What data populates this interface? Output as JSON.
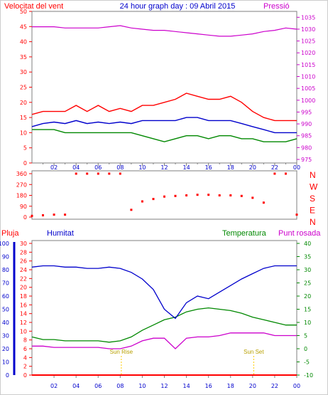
{
  "chart_data": [
    {
      "type": "line",
      "title": "24 hour graph day : 09 Abril 2015",
      "left_label": "Velocitat del vent",
      "right_label": "Pressió",
      "x_ticks": [
        "02",
        "04",
        "06",
        "08",
        "10",
        "12",
        "14",
        "16",
        "18",
        "20",
        "22",
        "00"
      ],
      "y_left_ticks": [
        "0",
        "5",
        "10",
        "15",
        "20",
        "25",
        "30",
        "35",
        "40",
        "45",
        "50"
      ],
      "y_right_ticks": [
        "975",
        "980",
        "985",
        "990",
        "995",
        "1000",
        "1005",
        "1010",
        "1015",
        "1020",
        "1025",
        "1030",
        "1035"
      ],
      "ylim_left": [
        0,
        50
      ],
      "ylim_right": [
        973.5,
        1037.5
      ],
      "grid": false,
      "colors": {
        "gust": "#ff0000",
        "average": "#0000cc",
        "speed": "#008800",
        "pressure": "#cc00cc"
      },
      "series": [
        {
          "key": "pressure",
          "axis": "right",
          "x": [
            0,
            1,
            2,
            3,
            4,
            5,
            6,
            7,
            8,
            9,
            10,
            11,
            12,
            13,
            14,
            15,
            16,
            17,
            18,
            19,
            20,
            21,
            22,
            23,
            24
          ],
          "y": [
            1031,
            1031,
            1031,
            1030.5,
            1030.5,
            1030.5,
            1030.5,
            1031,
            1031.5,
            1030.5,
            1030,
            1029.5,
            1029.5,
            1029,
            1028.5,
            1028,
            1027.5,
            1027,
            1027,
            1027.5,
            1028,
            1029,
            1029.5,
            1030.5,
            1030
          ]
        },
        {
          "key": "gust",
          "axis": "left",
          "x": [
            0,
            1,
            2,
            3,
            4,
            5,
            6,
            7,
            8,
            9,
            10,
            11,
            12,
            13,
            14,
            15,
            16,
            17,
            18,
            19,
            20,
            21,
            22,
            23,
            24
          ],
          "y": [
            16,
            17,
            17,
            17,
            19,
            17,
            19,
            17,
            18,
            17,
            19,
            19,
            20,
            21,
            23,
            22,
            21,
            21,
            22,
            20,
            17,
            15,
            14,
            14,
            14
          ]
        },
        {
          "key": "average",
          "axis": "left",
          "x": [
            0,
            1,
            2,
            3,
            4,
            5,
            6,
            7,
            8,
            9,
            10,
            11,
            12,
            13,
            14,
            15,
            16,
            17,
            18,
            19,
            20,
            21,
            22,
            23,
            24
          ],
          "y": [
            12,
            13,
            13.5,
            13,
            14,
            13,
            13.5,
            13,
            13.5,
            13,
            14,
            14,
            14,
            14,
            15,
            15,
            14,
            14,
            14,
            13,
            12,
            11,
            10,
            10,
            10
          ]
        },
        {
          "key": "speed",
          "axis": "left",
          "x": [
            0,
            1,
            2,
            3,
            4,
            5,
            6,
            7,
            8,
            9,
            10,
            11,
            12,
            13,
            14,
            15,
            16,
            17,
            18,
            19,
            20,
            21,
            22,
            23,
            24
          ],
          "y": [
            11,
            11,
            11,
            10,
            10,
            10,
            10,
            10,
            10,
            10,
            9,
            8,
            7,
            8,
            9,
            9,
            8,
            9,
            9,
            8,
            8,
            7,
            7,
            7,
            8
          ]
        }
      ]
    },
    {
      "type": "scatter",
      "y_ticks": [
        "360",
        "270",
        "180",
        "90",
        "0"
      ],
      "direction_letters": [
        "N",
        "W",
        "S",
        "E",
        "N"
      ],
      "ylim": [
        0,
        360
      ],
      "colors": {
        "points": "#ff0000"
      },
      "series": [
        {
          "key": "direction",
          "x": [
            0,
            1,
            2,
            3,
            4,
            5,
            6,
            7,
            8,
            9,
            10,
            11,
            12,
            13,
            14,
            15,
            16,
            17,
            18,
            19,
            20,
            21,
            22,
            23,
            24
          ],
          "y": [
            10,
            15,
            20,
            20,
            360,
            360,
            360,
            360,
            360,
            60,
            130,
            150,
            170,
            175,
            180,
            185,
            185,
            180,
            180,
            175,
            160,
            120,
            360,
            360,
            20
          ]
        }
      ]
    },
    {
      "type": "line",
      "left_labels": [
        "Pluja",
        "Humitat"
      ],
      "right_labels": [
        "Temperatura",
        "Punt rosada"
      ],
      "annotations": [
        "Sun Rise",
        "Sun Set"
      ],
      "annotation_x": [
        8.1,
        20.1
      ],
      "y_far_left_ticks": [
        "0",
        "10",
        "20",
        "30",
        "40",
        "50",
        "60",
        "70",
        "80",
        "90",
        "100"
      ],
      "y_left_ticks": [
        "0",
        "2",
        "4",
        "6",
        "8",
        "10",
        "12",
        "14",
        "16",
        "18",
        "20",
        "22",
        "24",
        "26",
        "28",
        "30"
      ],
      "y_right_ticks": [
        "-10",
        "-5",
        "0",
        "5",
        "10",
        "15",
        "20",
        "25",
        "30",
        "35",
        "40"
      ],
      "ylim_humidity": [
        0,
        100
      ],
      "ylim_rain": [
        0,
        30
      ],
      "ylim_temp": [
        -10,
        40
      ],
      "colors": {
        "rain": "#ff0000",
        "humidity": "#0000cc",
        "temperature": "#008800",
        "dewpoint": "#cc00cc",
        "sun": "#ffcc00"
      },
      "series": [
        {
          "key": "humidity",
          "axis": "humidity",
          "x": [
            0,
            1,
            2,
            3,
            4,
            5,
            6,
            7,
            8,
            9,
            10,
            11,
            12,
            13,
            14,
            15,
            16,
            17,
            18,
            19,
            20,
            21,
            22,
            23,
            24
          ],
          "y": [
            82,
            83,
            83,
            82,
            82,
            81,
            81,
            82,
            81,
            78,
            73,
            65,
            50,
            43,
            55,
            60,
            58,
            63,
            68,
            73,
            77,
            81,
            83,
            83,
            83
          ]
        },
        {
          "key": "temperature",
          "axis": "temp",
          "x": [
            0,
            1,
            2,
            3,
            4,
            5,
            6,
            7,
            8,
            9,
            10,
            11,
            12,
            13,
            14,
            15,
            16,
            17,
            18,
            19,
            20,
            21,
            22,
            23,
            24
          ],
          "y": [
            4.5,
            3.5,
            3.5,
            3,
            3,
            3,
            3,
            2.5,
            3,
            4.5,
            7,
            9,
            11,
            12,
            14,
            15,
            15.5,
            15,
            14.5,
            13.5,
            12,
            11,
            10,
            9,
            9
          ]
        },
        {
          "key": "dewpoint",
          "axis": "temp",
          "x": [
            0,
            1,
            2,
            3,
            4,
            5,
            6,
            7,
            8,
            9,
            10,
            11,
            12,
            13,
            14,
            15,
            16,
            17,
            18,
            19,
            20,
            21,
            22,
            23,
            24
          ],
          "y": [
            1,
            1,
            0.5,
            0.5,
            0.5,
            0.5,
            0.5,
            0,
            0,
            1,
            3,
            4,
            4,
            0,
            4,
            4.5,
            4.5,
            5,
            6,
            6,
            6,
            6,
            5,
            5,
            5
          ]
        },
        {
          "key": "rain",
          "axis": "rain",
          "x": [
            0,
            24
          ],
          "y": [
            0,
            0
          ]
        }
      ]
    }
  ]
}
